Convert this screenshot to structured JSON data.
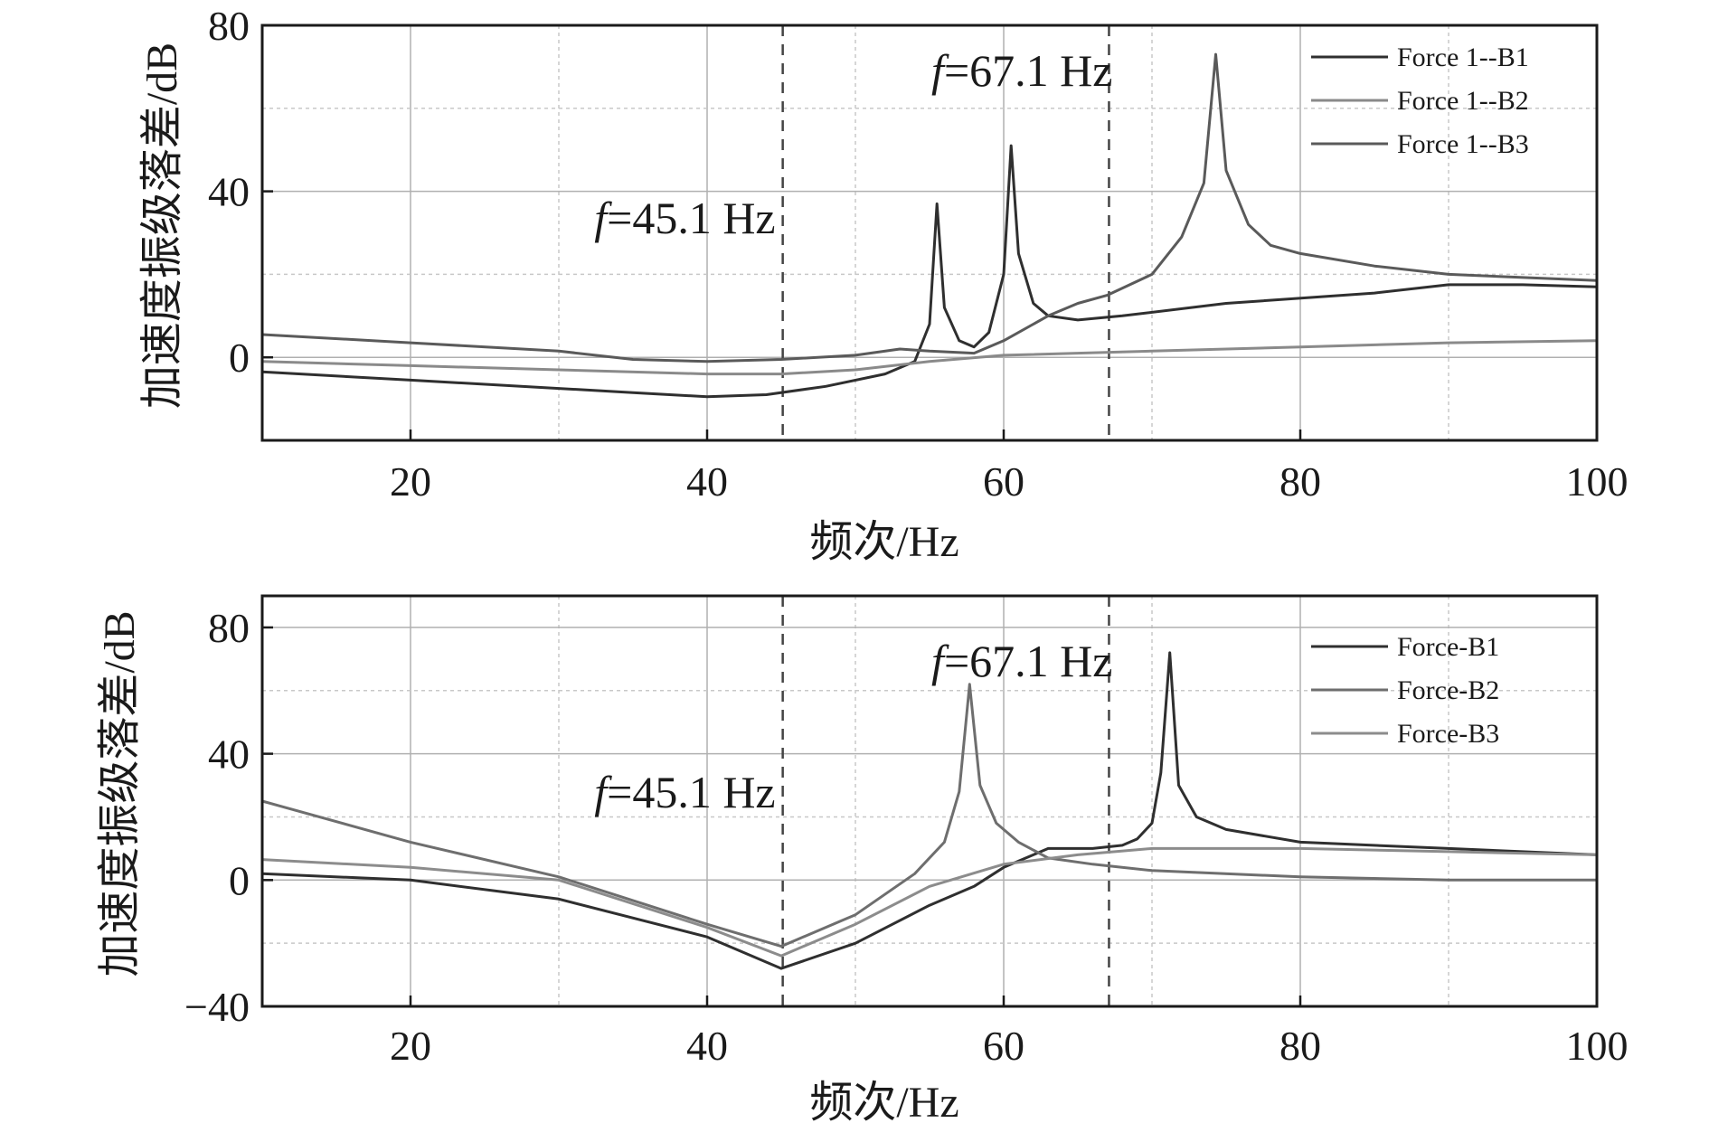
{
  "chart_data": [
    {
      "type": "line",
      "title": "",
      "xlabel": "频次/Hz",
      "ylabel": "加速度振级落差/dB",
      "xlim": [
        10,
        100
      ],
      "ylim": [
        -20,
        80
      ],
      "xticks": [
        "20",
        "40",
        "60",
        "80",
        "100"
      ],
      "yticks": [
        "0",
        "40",
        "80"
      ],
      "grid": true,
      "legend_position": "top-right",
      "vlines": [
        45.1,
        67.1
      ],
      "annotations": [
        {
          "f": "f",
          "text": "=45.1 Hz",
          "x": 45.1
        },
        {
          "f": "f",
          "text": "=67.1 Hz",
          "x": 67.1
        }
      ],
      "series": [
        {
          "name": "Force 1--B1",
          "color": "#2f2f2f",
          "x": [
            10,
            20,
            30,
            35,
            40,
            44,
            48,
            52,
            54,
            55,
            55.5,
            56,
            57,
            58,
            59,
            60,
            60.5,
            61,
            62,
            63,
            65,
            68,
            75,
            85,
            90,
            95,
            100
          ],
          "y": [
            -3.5,
            -5.5,
            -7.5,
            -8.5,
            -9.5,
            -9,
            -7,
            -4,
            -1,
            8,
            37,
            12,
            4,
            2.5,
            6,
            20,
            51,
            25,
            13,
            10,
            9,
            10,
            13,
            15.5,
            17.5,
            17.5,
            17
          ]
        },
        {
          "name": "Force 1--B2",
          "color": "#8a8a8a",
          "x": [
            10,
            20,
            30,
            40,
            45,
            50,
            55,
            60,
            70,
            80,
            90,
            100
          ],
          "y": [
            -1,
            -2,
            -3,
            -4,
            -4,
            -3,
            -1,
            0.5,
            1.5,
            2.5,
            3.5,
            4
          ]
        },
        {
          "name": "Force 1--B3",
          "color": "#5a5a5a",
          "x": [
            10,
            20,
            30,
            35,
            40,
            45,
            50,
            53,
            55,
            58,
            60,
            63,
            65,
            67,
            70,
            72,
            73.5,
            74.3,
            75,
            76.5,
            78,
            80,
            85,
            90,
            100
          ],
          "y": [
            5.5,
            3.5,
            1.5,
            -0.5,
            -1,
            -0.5,
            0.5,
            2,
            1.5,
            1,
            4,
            10,
            13,
            15,
            20,
            29,
            42,
            73,
            45,
            32,
            27,
            25,
            22,
            20,
            18.5
          ]
        }
      ]
    },
    {
      "type": "line",
      "title": "",
      "xlabel": "频次/Hz",
      "ylabel": "加速度振级落差/dB",
      "xlim": [
        10,
        100
      ],
      "ylim": [
        -40,
        90
      ],
      "xticks": [
        "20",
        "40",
        "60",
        "80",
        "100"
      ],
      "yticks": [
        "−40",
        "0",
        "40",
        "80"
      ],
      "grid": true,
      "legend_position": "top-right",
      "vlines": [
        45.1,
        67.1
      ],
      "annotations": [
        {
          "f": "f",
          "text": "=45.1 Hz",
          "x": 45.1
        },
        {
          "f": "f",
          "text": "=67.1 Hz",
          "x": 67.1
        }
      ],
      "series": [
        {
          "name": "Force-B1",
          "color": "#2f2f2f",
          "x": [
            10,
            20,
            30,
            40,
            45,
            50,
            55,
            58,
            60,
            62,
            63,
            64,
            66,
            68,
            69,
            70,
            70.6,
            71.2,
            71.8,
            73,
            75,
            80,
            90,
            100
          ],
          "y": [
            2,
            0,
            -6,
            -18,
            -28,
            -20,
            -8,
            -2,
            4,
            8,
            10,
            10,
            10,
            11,
            13,
            18,
            34,
            72,
            30,
            20,
            16,
            12,
            10,
            8
          ]
        },
        {
          "name": "Force-B2",
          "color": "#6e6e6e",
          "x": [
            10,
            20,
            30,
            40,
            45,
            50,
            54,
            56,
            57,
            57.7,
            58.4,
            59.5,
            61,
            63,
            66,
            70,
            80,
            90,
            100
          ],
          "y": [
            25,
            12,
            1,
            -14,
            -21,
            -11,
            2,
            12,
            28,
            62,
            30,
            18,
            12,
            7,
            5,
            3,
            1,
            0,
            0
          ]
        },
        {
          "name": "Force-B3",
          "color": "#8c8c8c",
          "x": [
            10,
            20,
            30,
            40,
            45,
            50,
            55,
            60,
            65,
            70,
            80,
            90,
            100
          ],
          "y": [
            6.5,
            4,
            0,
            -15,
            -24,
            -14,
            -2,
            5,
            8,
            10,
            10,
            9,
            8
          ]
        }
      ]
    }
  ]
}
